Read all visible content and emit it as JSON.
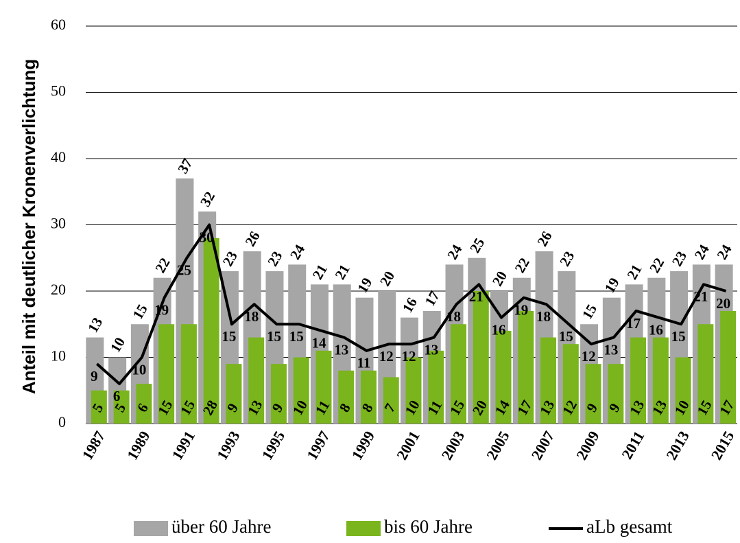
{
  "chart_data": {
    "type": "bar",
    "y_label": "Anteil mit deutlicher Kronenverlichtung",
    "categories": [
      "1987",
      null,
      "1989",
      null,
      "1991",
      null,
      "1993",
      null,
      "1995",
      null,
      "1997",
      null,
      "1999",
      null,
      "2001",
      null,
      "2003",
      null,
      "2005",
      null,
      "2007",
      null,
      "2009",
      null,
      "2011",
      null,
      "2013",
      null,
      "2015"
    ],
    "series": [
      {
        "name": "über 60 Jahre",
        "type": "bar",
        "color": "#a6a6a6",
        "values": [
          13,
          10,
          15,
          22,
          37,
          32,
          23,
          26,
          23,
          24,
          21,
          21,
          19,
          20,
          16,
          17,
          24,
          25,
          20,
          22,
          26,
          23,
          15,
          19,
          21,
          22,
          23,
          24,
          24
        ]
      },
      {
        "name": "bis 60 Jahre",
        "type": "bar",
        "color": "#7ab51d",
        "values": [
          5,
          5,
          6,
          15,
          15,
          28,
          9,
          13,
          9,
          10,
          11,
          8,
          8,
          7,
          10,
          11,
          15,
          20,
          14,
          17,
          13,
          12,
          9,
          9,
          13,
          13,
          10,
          15,
          17
        ]
      },
      {
        "name": "aLb gesamt",
        "type": "line",
        "color": "#000000",
        "values": [
          9,
          6,
          10,
          19,
          25,
          30,
          15,
          18,
          15,
          15,
          14,
          13,
          11,
          12,
          12,
          13,
          18,
          21,
          16,
          19,
          18,
          15,
          12,
          13,
          17,
          16,
          15,
          21,
          20
        ]
      }
    ],
    "ylim": [
      0,
      60
    ],
    "yticks": [
      0,
      10,
      20,
      30,
      40,
      50,
      60
    ],
    "grid": true
  }
}
